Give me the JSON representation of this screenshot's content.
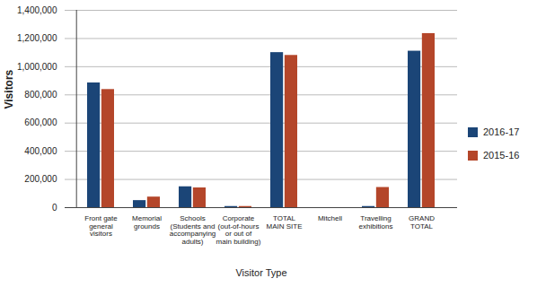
{
  "chart_data": {
    "type": "bar",
    "categories": [
      "Front gate\ngeneral\nvisitors",
      "Memorial\ngrounds",
      "Schools\n(Students and\naccompanying\nadults)",
      "Corporate\n(out-of-hours\nor out of\nmain building)",
      "TOTAL\nMAIN SITE",
      "Mitchell",
      "Travelling\nexhibitions",
      "GRAND\nTOTAL"
    ],
    "series": [
      {
        "name": "2016-17",
        "color": "#1b4577",
        "values": [
          885000,
          50000,
          148000,
          8000,
          1100000,
          0,
          8000,
          1110000
        ]
      },
      {
        "name": "2015-16",
        "color": "#b4462a",
        "values": [
          838000,
          75000,
          140000,
          8000,
          1080000,
          0,
          143000,
          1235000
        ]
      }
    ],
    "xlabel": "Visitor Type",
    "ylabel": "Visitors",
    "ylim": [
      0,
      1400000
    ],
    "yticks": [
      0,
      {
        "value": 200000,
        "label": "200,000"
      },
      {
        "value": 400000,
        "label": "400,000"
      },
      {
        "value": 600000,
        "label": "600,000"
      },
      {
        "value": 800000,
        "label": "800,000"
      },
      {
        "value": 1000000,
        "label": "1,000,000"
      },
      {
        "value": 1200000,
        "label": "1,200,000"
      },
      {
        "value": 1400000,
        "label": "1,400,000"
      }
    ],
    "grid": true,
    "legend": "right"
  }
}
